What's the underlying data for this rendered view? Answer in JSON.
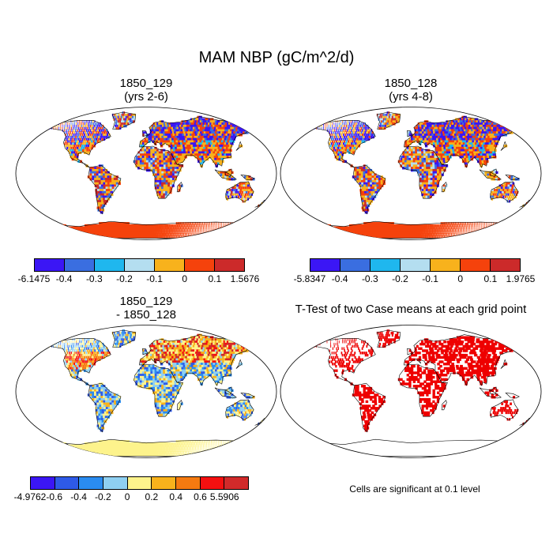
{
  "figure": {
    "title": "MAM NBP (gC/m^2/d)",
    "note": "Cells are significant at 0.1 level"
  },
  "panels": [
    {
      "id": "case1",
      "title_line1": "1850_129",
      "title_line2": "(yrs 2-6)",
      "colorbar": {
        "labels": [
          "-6.1475",
          "-0.4",
          "-0.3",
          "-0.2",
          "-0.1",
          "0",
          "0.1",
          "1.5676"
        ],
        "colors": [
          "#3b16f5",
          "#3a6ee0",
          "#1fb7ee",
          "#b4def0",
          "#f8b21c",
          "#f5420c",
          "#cc2a2a"
        ]
      }
    },
    {
      "id": "case2",
      "title_line1": "1850_128",
      "title_line2": "(yrs 4-8)",
      "colorbar": {
        "labels": [
          "-5.8347",
          "-0.4",
          "-0.3",
          "-0.2",
          "-0.1",
          "0",
          "0.1",
          "1.9765"
        ],
        "colors": [
          "#3b16f5",
          "#3a6ee0",
          "#1fb7ee",
          "#b4def0",
          "#f8b21c",
          "#f5420c",
          "#cc2a2a"
        ]
      }
    },
    {
      "id": "difference",
      "title_line1": "1850_129",
      "title_line2": "- 1850_128",
      "colorbar": {
        "labels": [
          "-4.9762",
          "-0.6",
          "-0.4",
          "-0.2",
          "0",
          "0.2",
          "0.4",
          "0.6",
          "5.5906"
        ],
        "colors": [
          "#3b16f5",
          "#2e5ae8",
          "#2a8cf0",
          "#8fd0f2",
          "#fdf38c",
          "#f8b21c",
          "#f57a10",
          "#f51010",
          "#d12a2a"
        ]
      }
    },
    {
      "id": "ttest",
      "title_line1": "T-Test of two Case means at each grid point",
      "significant_color": "#ee0000"
    }
  ]
}
